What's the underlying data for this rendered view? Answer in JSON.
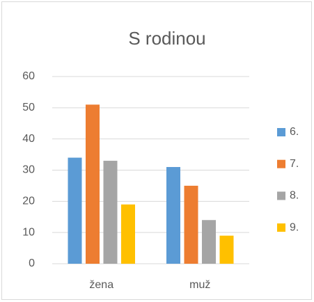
{
  "chart_data": {
    "type": "bar",
    "title": "S rodinou",
    "categories": [
      "žena",
      "muž"
    ],
    "series": [
      {
        "name": "6.",
        "color": "#5b9bd5",
        "values": [
          34,
          31
        ]
      },
      {
        "name": "7.",
        "color": "#ed7d31",
        "values": [
          51,
          25
        ]
      },
      {
        "name": "8.",
        "color": "#a5a5a5",
        "values": [
          33,
          14
        ]
      },
      {
        "name": "9.",
        "color": "#ffc000",
        "values": [
          19,
          9
        ]
      }
    ],
    "ylim": [
      0,
      60
    ],
    "yticks": [
      0,
      10,
      20,
      30,
      40,
      50,
      60
    ],
    "grid": true,
    "legend": "right"
  }
}
